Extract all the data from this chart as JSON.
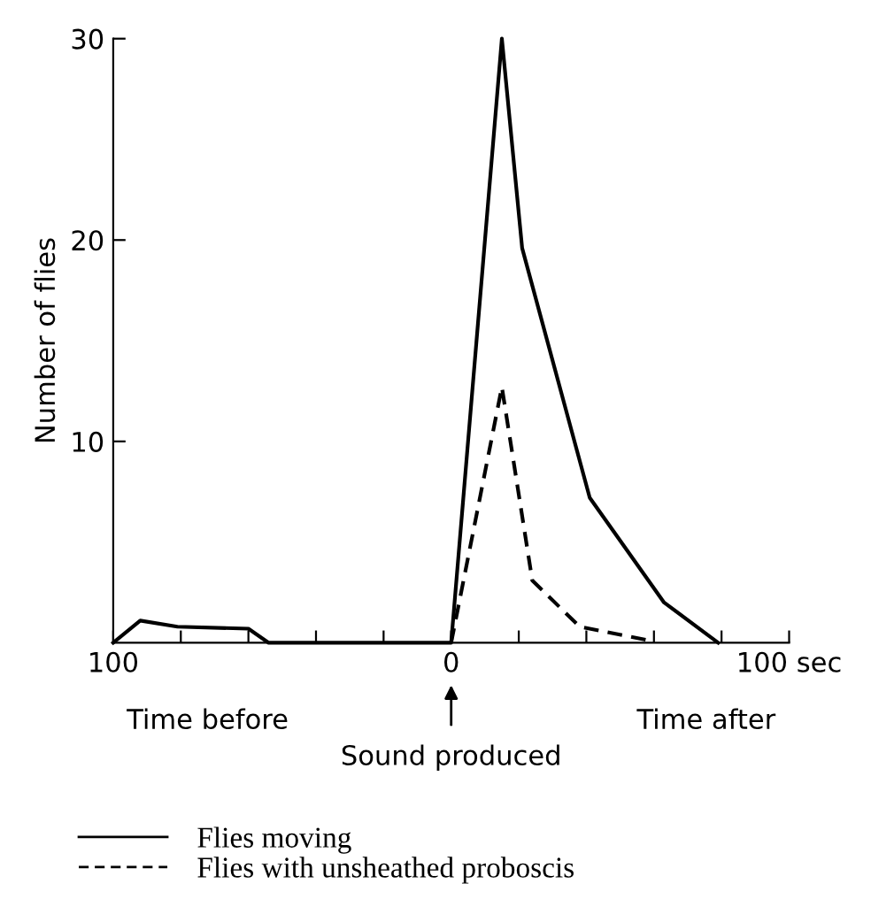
{
  "chart_data": {
    "type": "line",
    "ylabel": "Number of flies",
    "xlim": [
      -100,
      100
    ],
    "ylim": [
      0,
      30
    ],
    "xticks": [
      {
        "value": -100,
        "label": "100"
      },
      {
        "value": -80,
        "label": null
      },
      {
        "value": -60,
        "label": null
      },
      {
        "value": -40,
        "label": null
      },
      {
        "value": -20,
        "label": null
      },
      {
        "value": 0,
        "label": "0"
      },
      {
        "value": 20,
        "label": null
      },
      {
        "value": 40,
        "label": null
      },
      {
        "value": 60,
        "label": null
      },
      {
        "value": 80,
        "label": null
      },
      {
        "value": 100,
        "label": "100 sec"
      }
    ],
    "yticks": [
      10,
      20,
      30
    ],
    "series": [
      {
        "name": "Flies moving",
        "color": "#000000",
        "line_style": "solid",
        "x": [
          -100,
          -92,
          -81,
          -60,
          -54,
          0,
          15,
          21,
          41,
          63,
          79
        ],
        "values": [
          0,
          1.1,
          0.8,
          0.7,
          0,
          0,
          30,
          19.6,
          7.2,
          2,
          0
        ]
      },
      {
        "name": "Flies with unsheathed proboscis",
        "color": "#000000",
        "line_style": "dashed",
        "x": [
          0,
          15,
          24,
          38,
          59
        ],
        "values": [
          0,
          12.7,
          3.1,
          0.8,
          0.1
        ]
      }
    ],
    "annotations": [
      "Time before",
      "Time after",
      "Sound produced"
    ],
    "legend": "bottom",
    "grid": false,
    "marker": "none"
  }
}
